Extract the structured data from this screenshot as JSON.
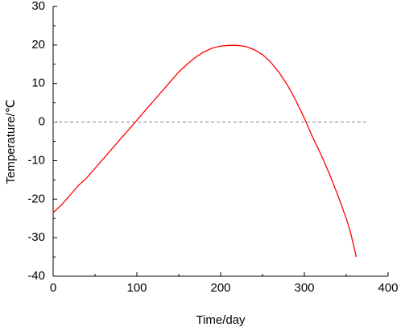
{
  "chart_data": {
    "type": "line",
    "x_label": "Time/day",
    "y_label": "Temperature/℃",
    "xlim": [
      0,
      400
    ],
    "xticks": [
      0,
      100,
      200,
      300,
      400
    ],
    "ylim": [
      -40,
      30
    ],
    "yticks": [
      -40,
      -30,
      -20,
      -10,
      0,
      10,
      20,
      30
    ],
    "reference_line": {
      "y": 0,
      "x": [
        0,
        375
      ],
      "color": "#888888",
      "dashed": true
    },
    "series": [
      {
        "color": "#ff0000",
        "x": [
          0,
          10,
          20,
          30,
          40,
          50,
          60,
          70,
          80,
          90,
          100,
          110,
          120,
          130,
          140,
          150,
          160,
          170,
          180,
          190,
          200,
          210,
          220,
          230,
          240,
          250,
          260,
          270,
          280,
          290,
          300,
          310,
          320,
          330,
          340,
          350,
          355,
          362
        ],
        "values": [
          -23.5,
          -21.5,
          -19,
          -16.5,
          -14.5,
          -12,
          -9.5,
          -7,
          -4.5,
          -2,
          0.5,
          3,
          5.5,
          8,
          10.5,
          13,
          15,
          16.8,
          18.2,
          19.2,
          19.7,
          19.9,
          19.9,
          19.6,
          18.8,
          17.5,
          15.5,
          12.8,
          9.5,
          5.5,
          1,
          -4,
          -8.5,
          -13.5,
          -19,
          -25,
          -28.5,
          -35
        ]
      }
    ]
  }
}
